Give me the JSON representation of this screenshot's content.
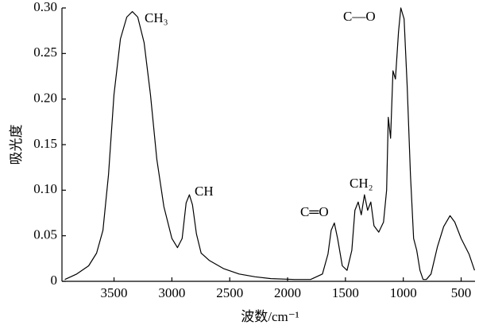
{
  "chart_data": {
    "type": "line",
    "x_label": "波数/cm⁻¹",
    "y_label": "吸光度",
    "annotations": [
      "CH₃",
      "CH",
      "C═O",
      "CH₂",
      "C—O"
    ],
    "x": [
      3925,
      3822,
      3719,
      3651,
      3596,
      3548,
      3500,
      3445,
      3390,
      3342,
      3295,
      3240,
      3185,
      3130,
      3069,
      3000,
      2952,
      2911,
      2877,
      2849,
      2822,
      2788,
      2747,
      2678,
      2555,
      2418,
      2281,
      2144,
      1938,
      1801,
      1699,
      1651,
      1623,
      1596,
      1568,
      1527,
      1486,
      1445,
      1418,
      1390,
      1363,
      1336,
      1308,
      1281,
      1253,
      1212,
      1171,
      1144,
      1130,
      1110,
      1089,
      1068,
      1041,
      1021,
      993,
      966,
      938,
      911,
      884,
      856,
      829,
      801,
      760,
      705,
      651,
      596,
      555,
      500,
      432,
      384
    ],
    "series": [
      {
        "color": "#000000",
        "values": [
          0.002,
          0.008,
          0.017,
          0.031,
          0.056,
          0.117,
          0.205,
          0.266,
          0.29,
          0.296,
          0.29,
          0.262,
          0.205,
          0.134,
          0.082,
          0.047,
          0.037,
          0.047,
          0.086,
          0.095,
          0.084,
          0.052,
          0.031,
          0.023,
          0.014,
          0.008,
          0.005,
          0.003,
          0.002,
          0.002,
          0.008,
          0.03,
          0.056,
          0.064,
          0.047,
          0.017,
          0.012,
          0.034,
          0.078,
          0.087,
          0.073,
          0.095,
          0.078,
          0.087,
          0.061,
          0.054,
          0.065,
          0.1,
          0.18,
          0.157,
          0.231,
          0.222,
          0.274,
          0.3,
          0.288,
          0.214,
          0.117,
          0.047,
          0.034,
          0.012,
          0.002,
          0.002,
          0.008,
          0.038,
          0.06,
          0.072,
          0.065,
          0.047,
          0.03,
          0.012
        ]
      }
    ],
    "xlim": [
      3950,
      380
    ],
    "xticks": [
      3500,
      3000,
      2500,
      2000,
      1500,
      1000,
      500
    ],
    "ylim": [
      0,
      0.3
    ],
    "yticks": [
      0,
      {
        "value": 0.05,
        "label": "0.05"
      },
      {
        "value": 0.1,
        "label": "0.10"
      },
      {
        "value": 0.15,
        "label": "0.15"
      },
      {
        "value": 0.2,
        "label": "0.20"
      },
      {
        "value": 0.25,
        "label": "0.25"
      },
      {
        "value": 0.3,
        "label": "0.30"
      }
    ]
  }
}
